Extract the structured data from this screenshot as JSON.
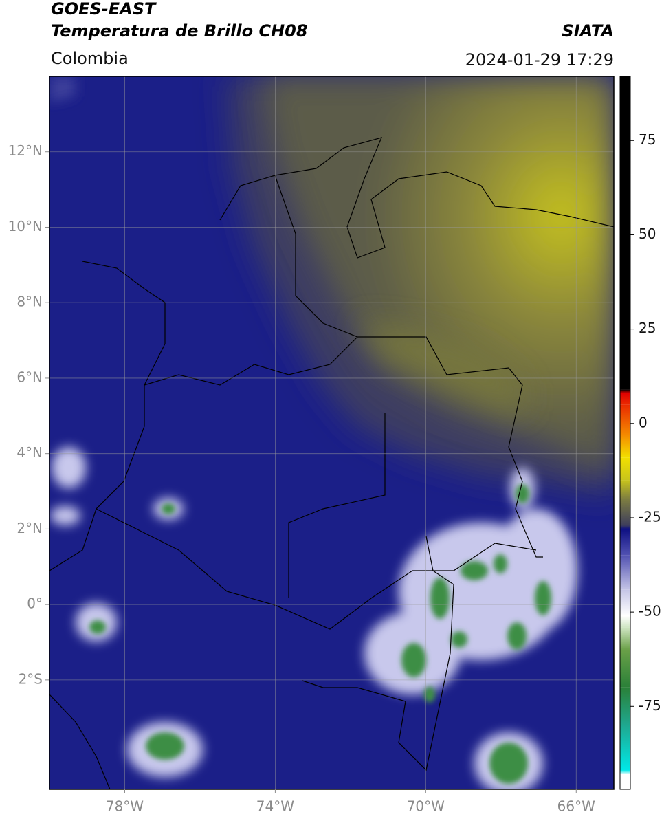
{
  "header": {
    "title_line1": "GOES-EAST",
    "title_line2": "Temperatura de Brillo CH08",
    "region": "Colombia",
    "source": "SIATA",
    "datetime": "2024-01-29 17:29"
  },
  "map": {
    "xlim": [
      -80,
      -65
    ],
    "ylim": [
      -4.9,
      14
    ],
    "xticks": [
      {
        "value": -78,
        "label": "78°W"
      },
      {
        "value": -74,
        "label": "74°W"
      },
      {
        "value": -70,
        "label": "70°W"
      },
      {
        "value": -66,
        "label": "66°W"
      }
    ],
    "yticks": [
      {
        "value": -2,
        "label": "2°S"
      },
      {
        "value": 0,
        "label": "0°"
      },
      {
        "value": 2,
        "label": "2°N"
      },
      {
        "value": 4,
        "label": "4°N"
      },
      {
        "value": 6,
        "label": "6°N"
      },
      {
        "value": 8,
        "label": "8°N"
      },
      {
        "value": 10,
        "label": "10°N"
      },
      {
        "value": 12,
        "label": "12°N"
      }
    ],
    "grid": true
  },
  "colorbar": {
    "lim": [
      -97,
      92
    ],
    "ticks": [
      -75,
      -50,
      -25,
      0,
      25,
      50,
      75
    ],
    "stops": [
      {
        "value": -97,
        "color": "#ffffff"
      },
      {
        "value": -93,
        "color": "#ffffff"
      },
      {
        "value": -92,
        "color": "#00e8e8"
      },
      {
        "value": -80,
        "color": "#1fa890"
      },
      {
        "value": -70,
        "color": "#2a8038"
      },
      {
        "value": -60,
        "color": "#6aa048"
      },
      {
        "value": -54,
        "color": "#d0e6c4"
      },
      {
        "value": -51,
        "color": "#ffffff"
      },
      {
        "value": -44,
        "color": "#c4c4e6"
      },
      {
        "value": -35,
        "color": "#5252b2"
      },
      {
        "value": -28,
        "color": "#0e1082"
      },
      {
        "value": -27,
        "color": "#3e3e5c"
      },
      {
        "value": -20,
        "color": "#7e7e40"
      },
      {
        "value": -15,
        "color": "#c8c41c"
      },
      {
        "value": -9,
        "color": "#f2e000"
      },
      {
        "value": -3,
        "color": "#f48a00"
      },
      {
        "value": 5,
        "color": "#ea2a00"
      },
      {
        "value": 8,
        "color": "#e00000"
      },
      {
        "value": 9,
        "color": "#000000"
      },
      {
        "value": 92,
        "color": "#000000"
      }
    ]
  }
}
